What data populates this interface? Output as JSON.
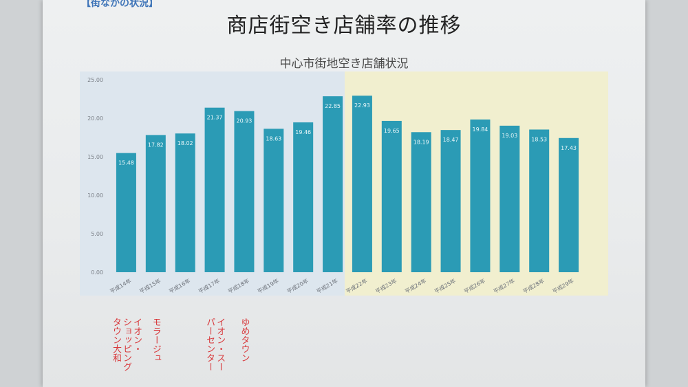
{
  "header": {
    "section_label": "【街なかの状況】",
    "title": "商店街空き店舗率の推移"
  },
  "colors": {
    "bar": "#2b9bb5",
    "bar_dark": "#1f7f96",
    "panel_left": "#dde6ee",
    "panel_right": "#f1efcf",
    "annotation": "#d8393c"
  },
  "chart_data": {
    "type": "bar",
    "title": "中心市街地空き店舗状況",
    "xlabel": "",
    "ylabel": "",
    "ylim": [
      0,
      25
    ],
    "yticks": [
      "0.00",
      "5.00",
      "10.00",
      "15.00",
      "20.00",
      "25.00"
    ],
    "categories": [
      "平成14年",
      "平成15年",
      "平成16年",
      "平成17年",
      "平成18年",
      "平成19年",
      "平成20年",
      "平成21年",
      "平成22年",
      "平成23年",
      "平成24年",
      "平成25年",
      "平成26年",
      "平成27年",
      "平成28年",
      "平成29年"
    ],
    "values": [
      15.48,
      17.82,
      18.02,
      21.37,
      20.93,
      18.63,
      19.46,
      22.85,
      22.93,
      19.65,
      18.19,
      18.47,
      19.84,
      19.03,
      18.53,
      17.43
    ],
    "value_labels": [
      "15.48",
      "17.82",
      "18.02",
      "21.37",
      "20.93",
      "18.63",
      "19.46",
      "22.85",
      "22.93",
      "19.65",
      "18.19",
      "18.47",
      "19.84",
      "19.03",
      "18.53",
      "17.43"
    ],
    "grid": false,
    "legend": "none"
  },
  "annotations": [
    {
      "category_index": 0,
      "lines": [
        "イオン・",
        "ショッピング",
        "タウン大和"
      ]
    },
    {
      "category_index": 1,
      "lines": [
        "モラージュ"
      ]
    },
    {
      "category_index": 3,
      "lines": [
        "イオン・スー",
        "パーセンター"
      ]
    },
    {
      "category_index": 4,
      "lines": [
        "ゆめタウン"
      ]
    }
  ]
}
